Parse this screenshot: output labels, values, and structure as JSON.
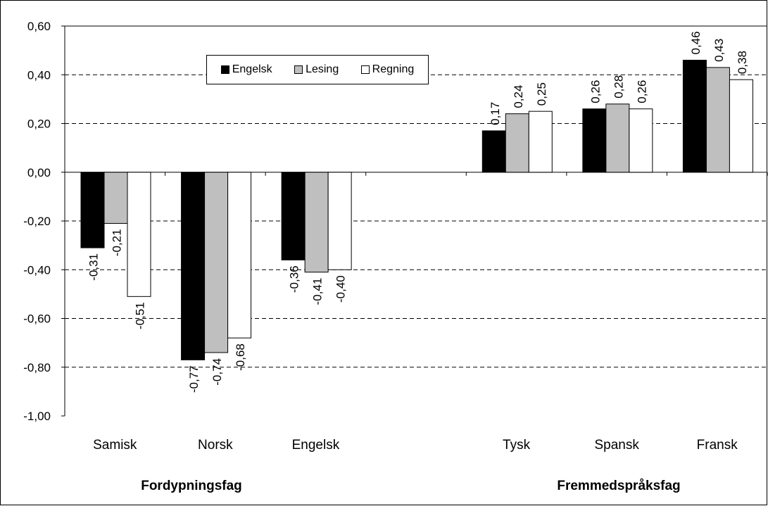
{
  "chart_data": {
    "type": "bar",
    "categories": [
      "Samisk",
      "Norsk",
      "Engelsk",
      "",
      "Tysk",
      "Spansk",
      "Fransk"
    ],
    "series": [
      {
        "name": "Engelsk",
        "color": "#000000",
        "values": [
          -0.31,
          -0.77,
          -0.36,
          null,
          0.17,
          0.26,
          0.46
        ],
        "labels": [
          "-0,31",
          "-0,77",
          "-0,36",
          "",
          "0,17",
          "0,26",
          "0,46"
        ]
      },
      {
        "name": "Lesing",
        "color": "#bfbfbf",
        "values": [
          -0.21,
          -0.74,
          -0.41,
          null,
          0.24,
          0.28,
          0.43
        ],
        "labels": [
          "-0,21",
          "-0,74",
          "-0,41",
          "",
          "0,24",
          "0,28",
          "0,43"
        ]
      },
      {
        "name": "Regning",
        "color": "#ffffff",
        "values": [
          -0.51,
          -0.68,
          -0.4,
          null,
          0.25,
          0.26,
          0.38
        ],
        "labels": [
          "-0,51",
          "-0,68",
          "-0,40",
          "",
          "0,25",
          "0,26",
          "0,38"
        ]
      }
    ],
    "ylim": [
      -1.0,
      0.6
    ],
    "yticks": [
      0.6,
      0.4,
      0.2,
      0.0,
      -0.2,
      -0.4,
      -0.6,
      -0.8,
      -1.0
    ],
    "ytick_labels": [
      "0,60",
      "0,40",
      "0,20",
      "0,00",
      "-0,20",
      "-0,40",
      "-0,60",
      "-0,80",
      "-1,00"
    ],
    "group_labels": [
      "Fordypningsfag",
      "Fremmedspråksfag"
    ],
    "grid": "horizontal dashed",
    "legend_position": "top-left"
  }
}
